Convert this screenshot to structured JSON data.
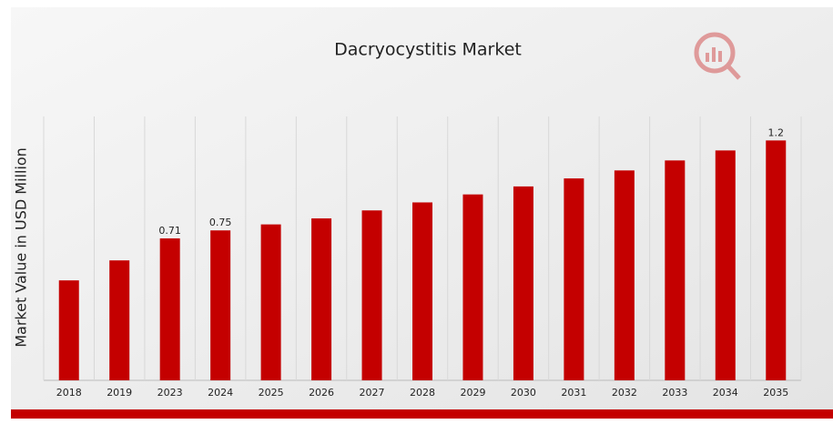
{
  "chart_data": {
    "type": "bar",
    "title": "Dacryocystitis Market",
    "y_label": "Market Value in USD Million",
    "categories": [
      "2018",
      "2019",
      "2023",
      "2024",
      "2025",
      "2026",
      "2027",
      "2028",
      "2029",
      "2030",
      "2031",
      "2032",
      "2033",
      "2034",
      "2035"
    ],
    "values": [
      0.5,
      0.6,
      0.71,
      0.75,
      0.78,
      0.81,
      0.85,
      0.89,
      0.93,
      0.97,
      1.01,
      1.05,
      1.1,
      1.15,
      1.2
    ],
    "value_labels": [
      null,
      null,
      "0.71",
      "0.75",
      null,
      null,
      null,
      null,
      null,
      null,
      null,
      null,
      null,
      null,
      "1.2"
    ],
    "color": "#c40000",
    "ylim": [
      0,
      1.32
    ],
    "grid": true
  }
}
